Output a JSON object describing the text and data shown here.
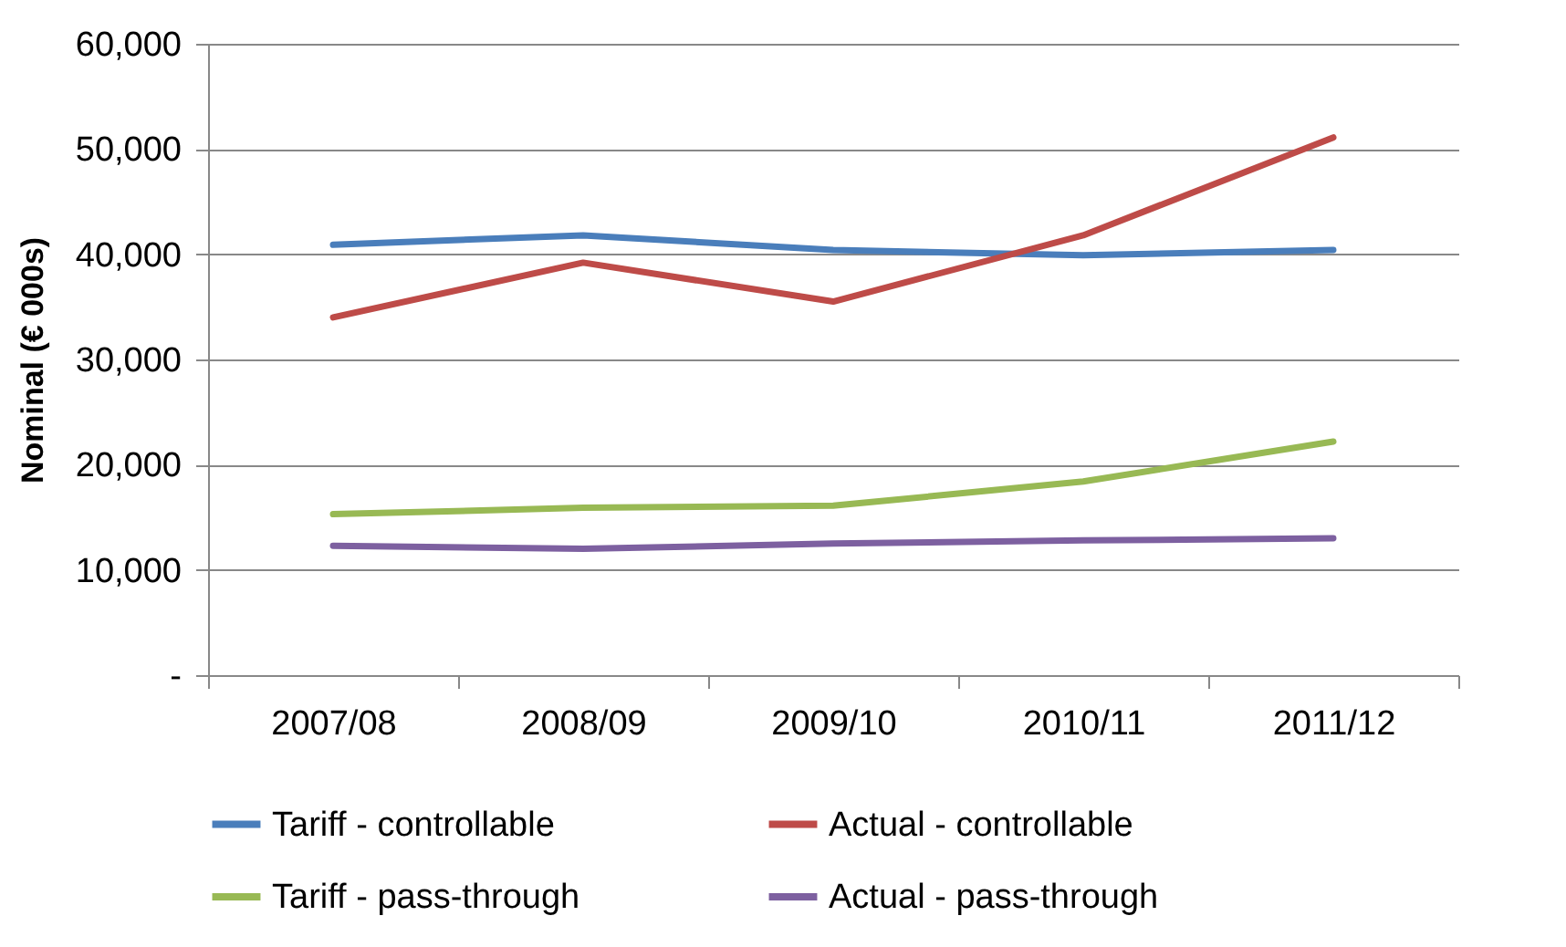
{
  "chart_data": {
    "type": "line",
    "ylabel": "Nominal (€ 000s)",
    "categories": [
      "2007/08",
      "2008/09",
      "2009/10",
      "2010/11",
      "2011/12"
    ],
    "series": [
      {
        "name": "Tariff - controllable",
        "color": "#4a7ebb",
        "values": [
          40900,
          41800,
          40400,
          39900,
          40400
        ]
      },
      {
        "name": "Actual - controllable",
        "color": "#be4b48",
        "values": [
          34000,
          39200,
          35500,
          41800,
          51100
        ]
      },
      {
        "name": "Tariff - pass-through",
        "color": "#98b954",
        "values": [
          15300,
          15900,
          16100,
          18400,
          22200
        ]
      },
      {
        "name": "Actual - pass-through",
        "color": "#7d60a0",
        "values": [
          12300,
          12000,
          12500,
          12800,
          13000
        ]
      }
    ],
    "ylim": [
      0,
      60000
    ],
    "yticks": [
      {
        "value": 0,
        "label": "-"
      },
      {
        "value": 10000,
        "label": "10,000"
      },
      {
        "value": 20000,
        "label": "20,000"
      },
      {
        "value": 30000,
        "label": "30,000"
      },
      {
        "value": 40000,
        "label": "40,000"
      },
      {
        "value": 50000,
        "label": "50,000"
      },
      {
        "value": 60000,
        "label": "60,000"
      }
    ],
    "grid": "y",
    "legend": "bottom",
    "marker": "none",
    "line_style": "solid"
  }
}
